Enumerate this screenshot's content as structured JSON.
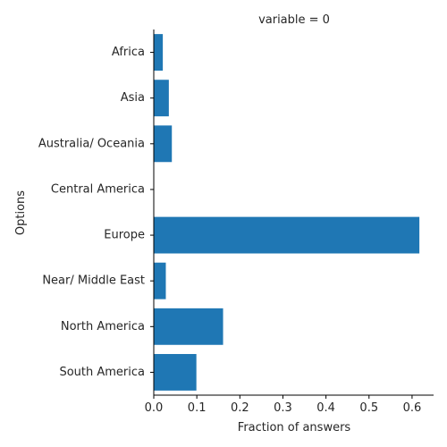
{
  "chart_data": {
    "type": "bar",
    "orientation": "horizontal",
    "title": "variable = 0",
    "xlabel": "Fraction of answers",
    "ylabel": "Options",
    "categories": [
      "Africa",
      "Asia",
      "Australia/ Oceania",
      "Central America",
      "Europe",
      "Near/ Middle East",
      "North America",
      "South America"
    ],
    "values": [
      0.021,
      0.035,
      0.042,
      0.0,
      0.617,
      0.028,
      0.161,
      0.099
    ],
    "xlim": [
      0,
      0.65
    ],
    "xticks": [
      0.0,
      0.1,
      0.2,
      0.3,
      0.4,
      0.5,
      0.6
    ],
    "xtick_labels": [
      "0.0",
      "0.1",
      "0.2",
      "0.3",
      "0.4",
      "0.5",
      "0.6"
    ],
    "grid": false,
    "bar_color": "#1f77b4"
  }
}
